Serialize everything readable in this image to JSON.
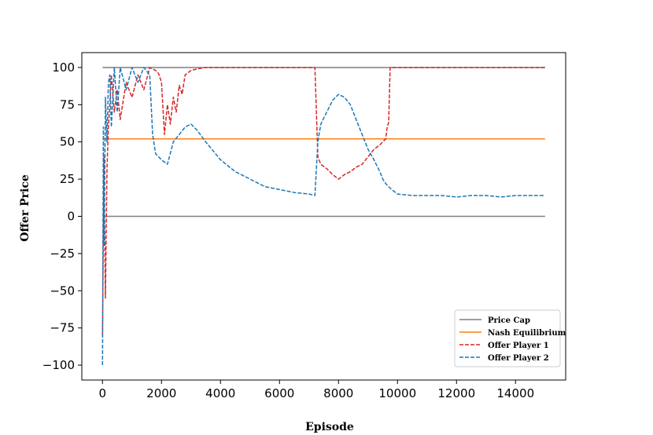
{
  "chart_data": {
    "type": "line",
    "title": "",
    "xlabel": "Episode",
    "ylabel": "Offer Price",
    "xlim": [
      -700,
      15700
    ],
    "ylim": [
      -110,
      110
    ],
    "xticks": [
      0,
      2000,
      4000,
      6000,
      8000,
      10000,
      12000,
      14000
    ],
    "xtick_labels": [
      "0",
      "2000",
      "4000",
      "6000",
      "8000",
      "10000",
      "12000",
      "14000"
    ],
    "yticks": [
      100,
      75,
      50,
      25,
      0,
      -25,
      -50,
      -75,
      -100
    ],
    "ytick_labels": [
      "100",
      "75",
      "50",
      "25",
      "0",
      "−25",
      "−50",
      "−75",
      "−100"
    ],
    "grid": false,
    "legend_position": "lower-right",
    "series": [
      {
        "name": "Price Cap",
        "color": "#7f7f7f",
        "style": "solid",
        "x": [
          0,
          15000
        ],
        "y": [
          100,
          100
        ]
      },
      {
        "name": "Price Cap",
        "color": "#7f7f7f",
        "style": "solid",
        "legend": false,
        "x": [
          0,
          15000
        ],
        "y": [
          0,
          0
        ]
      },
      {
        "name": "Nash Equilibrium",
        "color": "#ff7f0e",
        "style": "solid",
        "x": [
          0,
          15000
        ],
        "y": [
          52,
          52
        ]
      },
      {
        "name": "Offer Player 1",
        "color": "#d62728",
        "style": "dashed",
        "x": [
          0,
          50,
          100,
          150,
          200,
          250,
          300,
          400,
          500,
          600,
          800,
          1000,
          1200,
          1400,
          1600,
          1800,
          1900,
          2000,
          2100,
          2200,
          2300,
          2400,
          2500,
          2600,
          2700,
          2800,
          3000,
          3200,
          3500,
          4000,
          5000,
          6000,
          7000,
          7200,
          7300,
          7400,
          7600,
          7800,
          8000,
          8200,
          8400,
          8600,
          8800,
          9000,
          9200,
          9400,
          9600,
          9650,
          9700,
          9750,
          10000,
          11000,
          12000,
          13000,
          14000,
          15000
        ],
        "y": [
          -80,
          40,
          -55,
          30,
          60,
          75,
          95,
          70,
          85,
          65,
          90,
          80,
          95,
          85,
          100,
          98,
          96,
          90,
          55,
          75,
          62,
          80,
          70,
          88,
          82,
          95,
          98,
          99,
          100,
          100,
          100,
          100,
          100,
          100,
          40,
          35,
          32,
          28,
          25,
          28,
          30,
          33,
          35,
          40,
          45,
          48,
          52,
          60,
          63,
          100,
          100,
          100,
          100,
          100,
          100,
          100
        ]
      },
      {
        "name": "Offer Player 2",
        "color": "#1f77b4",
        "style": "dashed",
        "x": [
          0,
          30,
          60,
          100,
          150,
          200,
          250,
          300,
          400,
          500,
          600,
          800,
          1000,
          1200,
          1400,
          1600,
          1700,
          1800,
          2000,
          2200,
          2400,
          2600,
          2800,
          3000,
          3200,
          3500,
          4000,
          4500,
          5000,
          5500,
          6000,
          6500,
          7000,
          7200,
          7300,
          7400,
          7600,
          7800,
          8000,
          8200,
          8400,
          8600,
          8800,
          9000,
          9200,
          9400,
          9500,
          9600,
          9700,
          9800,
          10000,
          10500,
          11000,
          11500,
          12000,
          12500,
          13000,
          13500,
          14000,
          14500,
          15000
        ],
        "y": [
          -100,
          60,
          -20,
          80,
          50,
          90,
          95,
          60,
          100,
          70,
          100,
          85,
          100,
          90,
          100,
          95,
          55,
          42,
          38,
          35,
          50,
          55,
          60,
          62,
          58,
          50,
          38,
          30,
          25,
          20,
          18,
          16,
          15,
          14,
          50,
          62,
          70,
          78,
          82,
          80,
          75,
          65,
          55,
          45,
          38,
          30,
          25,
          22,
          20,
          18,
          15,
          14,
          14,
          14,
          13,
          14,
          14,
          13,
          14,
          14,
          14
        ]
      }
    ]
  }
}
